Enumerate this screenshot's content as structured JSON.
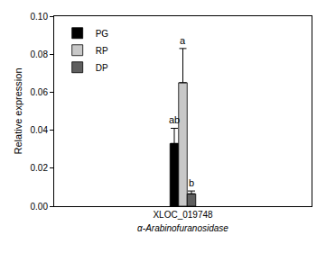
{
  "chart_data": {
    "type": "bar",
    "categories": [
      "XLOC_019748"
    ],
    "x_label": "α-Arabinofuranosidase",
    "y_label": "Relative expression",
    "series": [
      {
        "name": "PG",
        "color": "#000000",
        "values": [
          0.033
        ],
        "error": [
          0.008
        ],
        "annotations": [
          "ab"
        ]
      },
      {
        "name": "RP",
        "color": "#c8c8c8",
        "values": [
          0.065
        ],
        "error": [
          0.018
        ],
        "annotations": [
          "a"
        ]
      },
      {
        "name": "DP",
        "color": "#5f5f5f",
        "values": [
          0.0065
        ],
        "error": [
          0.0015
        ],
        "annotations": [
          "b"
        ]
      }
    ],
    "ylim": [
      0,
      0.1
    ],
    "yticks": [
      {
        "value": 0,
        "label": "0.00"
      },
      {
        "value": 0.02,
        "label": "0.02"
      },
      {
        "value": 0.04,
        "label": "0.04"
      },
      {
        "value": 0.06,
        "label": "0.06"
      },
      {
        "value": 0.08,
        "label": "0.08"
      },
      {
        "value": 0.1,
        "label": "0.10"
      }
    ],
    "grid": false,
    "legend": "upper left"
  }
}
